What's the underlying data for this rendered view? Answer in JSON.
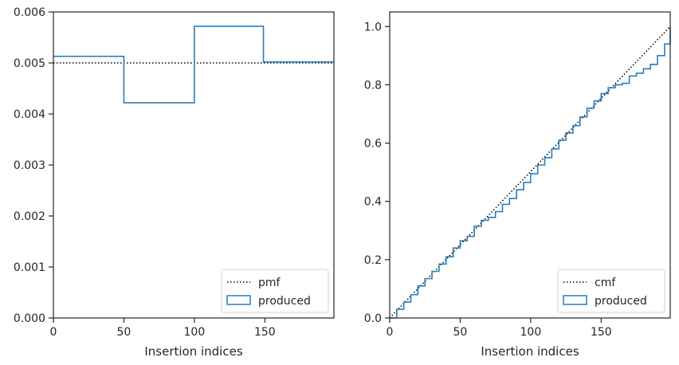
{
  "chart_data": [
    {
      "type": "step",
      "xlabel": "Insertion indices",
      "ylabel": "",
      "xlim": [
        0,
        199
      ],
      "ylim": [
        0,
        0.006
      ],
      "x_ticks": [
        0,
        50,
        100,
        150
      ],
      "x_tick_labels": [
        "0",
        "50",
        "100",
        "150"
      ],
      "y_ticks": [
        0,
        0.001,
        0.002,
        0.003,
        0.004,
        0.005,
        0.006
      ],
      "y_tick_labels": [
        "0.000",
        "0.001",
        "0.002",
        "0.003",
        "0.004",
        "0.005",
        "0.006"
      ],
      "legend_position": "lower right",
      "series": [
        {
          "name": "pmf",
          "style": "dotted",
          "color": "#000000",
          "x": [
            0,
            199
          ],
          "y": [
            0.005,
            0.005
          ]
        },
        {
          "name": "produced",
          "style": "step-histogram",
          "color": "#2a7fb8",
          "bin_edges": [
            0,
            50,
            100,
            149,
            199
          ],
          "values": [
            0.00513,
            0.00422,
            0.00572,
            0.00502
          ]
        }
      ]
    },
    {
      "type": "step",
      "xlabel": "Insertion indices",
      "ylabel": "",
      "xlim": [
        0,
        199
      ],
      "ylim": [
        0,
        1.05
      ],
      "x_ticks": [
        0,
        50,
        100,
        150
      ],
      "x_tick_labels": [
        "0",
        "50",
        "100",
        "150"
      ],
      "y_ticks": [
        0,
        0.2,
        0.4,
        0.6,
        0.8,
        1.0
      ],
      "y_tick_labels": [
        "0.0",
        "0.2",
        "0.4",
        "0.6",
        "0.8",
        "1.0"
      ],
      "legend_position": "lower right",
      "series": [
        {
          "name": "cmf",
          "style": "dotted",
          "color": "#000000",
          "x": [
            0,
            199
          ],
          "y": [
            0,
            1.0
          ]
        },
        {
          "name": "produced",
          "style": "step",
          "color": "#2a7fb8",
          "x": [
            0,
            5,
            10,
            15,
            20,
            25,
            30,
            35,
            40,
            45,
            50,
            55,
            60,
            65,
            70,
            75,
            80,
            85,
            90,
            95,
            100,
            105,
            110,
            115,
            120,
            125,
            130,
            135,
            140,
            145,
            150,
            155,
            160,
            165,
            170,
            175,
            180,
            185,
            190,
            195,
            199
          ],
          "y": [
            0.0,
            0.03,
            0.055,
            0.08,
            0.11,
            0.135,
            0.16,
            0.185,
            0.21,
            0.24,
            0.265,
            0.28,
            0.315,
            0.335,
            0.345,
            0.365,
            0.39,
            0.41,
            0.44,
            0.465,
            0.495,
            0.525,
            0.55,
            0.58,
            0.61,
            0.635,
            0.66,
            0.69,
            0.72,
            0.745,
            0.77,
            0.79,
            0.8,
            0.805,
            0.83,
            0.84,
            0.855,
            0.87,
            0.9,
            0.94,
            1.0
          ]
        }
      ]
    }
  ]
}
